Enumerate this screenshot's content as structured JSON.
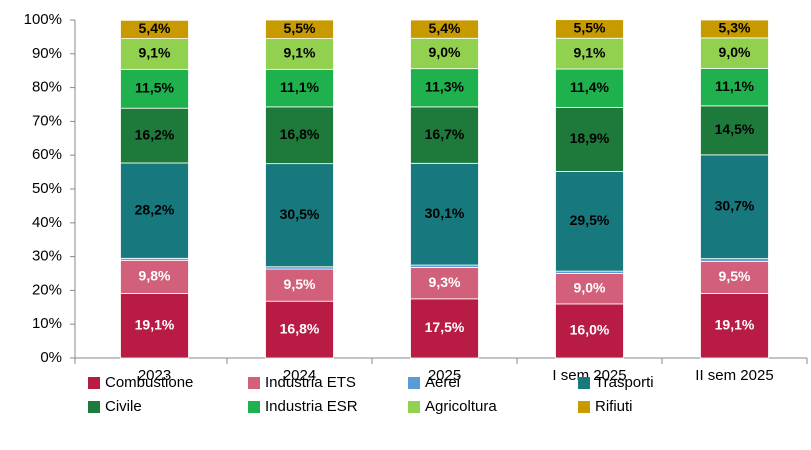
{
  "chart_data": {
    "type": "stacked_bar",
    "categories": [
      "2023",
      "2024",
      "2025",
      "I sem 2025",
      "II sem 2025"
    ],
    "ylim": [
      0,
      100
    ],
    "yticks": [
      {
        "value": 0,
        "label": "0%"
      },
      {
        "value": 10,
        "label": "10%"
      },
      {
        "value": 20,
        "label": "20%"
      },
      {
        "value": 30,
        "label": "30%"
      },
      {
        "value": 40,
        "label": "40%"
      },
      {
        "value": 50,
        "label": "50%"
      },
      {
        "value": 60,
        "label": "60%"
      },
      {
        "value": 70,
        "label": "70%"
      },
      {
        "value": 80,
        "label": "80%"
      },
      {
        "value": 90,
        "label": "90%"
      },
      {
        "value": 100,
        "label": "100%"
      }
    ],
    "legend": "bottom",
    "series": [
      {
        "name": "Combustione",
        "color": "#b81c45",
        "label_color": "#ffffff",
        "values": [
          19.1,
          16.8,
          17.5,
          16.0,
          19.1
        ],
        "value_labels": [
          "19,1%",
          "16,8%",
          "17,5%",
          "16,0%",
          "19,1%"
        ]
      },
      {
        "name": "Industria ETS",
        "color": "#d2607a",
        "label_color": "#ffffff",
        "values": [
          9.8,
          9.5,
          9.3,
          9.0,
          9.5
        ],
        "value_labels": [
          "9,8%",
          "9,5%",
          "9,3%",
          "9,0%",
          "9,5%"
        ]
      },
      {
        "name": "Aerei",
        "color": "#5b9bd5",
        "label_color": "#000000",
        "values": [
          0.6,
          0.7,
          0.7,
          0.7,
          0.8
        ],
        "value_labels": [
          "0,6%",
          "0,7%",
          "0,7%",
          "0,7%",
          "0,8%"
        ]
      },
      {
        "name": "Trasporti",
        "color": "#17787e",
        "label_color": "#000000",
        "values": [
          28.2,
          30.5,
          30.1,
          29.5,
          30.7
        ],
        "value_labels": [
          "28,2%",
          "30,5%",
          "30,1%",
          "29,5%",
          "30,7%"
        ]
      },
      {
        "name": "Civile",
        "color": "#1e7a3a",
        "label_color": "#000000",
        "values": [
          16.2,
          16.8,
          16.7,
          18.9,
          14.5
        ],
        "value_labels": [
          "16,2%",
          "16,8%",
          "16,7%",
          "18,9%",
          "14,5%"
        ]
      },
      {
        "name": "Industria ESR",
        "color": "#1fb14d",
        "label_color": "#000000",
        "values": [
          11.5,
          11.1,
          11.3,
          11.4,
          11.1
        ],
        "value_labels": [
          "11,5%",
          "11,1%",
          "11,3%",
          "11,4%",
          "11,1%"
        ]
      },
      {
        "name": "Agricoltura",
        "color": "#92d050",
        "label_color": "#000000",
        "values": [
          9.1,
          9.1,
          9.0,
          9.1,
          9.0
        ],
        "value_labels": [
          "9,1%",
          "9,1%",
          "9,0%",
          "9,1%",
          "9,0%"
        ]
      },
      {
        "name": "Rifiuti",
        "color": "#c79b00",
        "label_color": "#000000",
        "values": [
          5.4,
          5.5,
          5.4,
          5.5,
          5.3
        ],
        "value_labels": [
          "5,4%",
          "5,5%",
          "5,4%",
          "5,5%",
          "5,3%"
        ]
      }
    ]
  }
}
